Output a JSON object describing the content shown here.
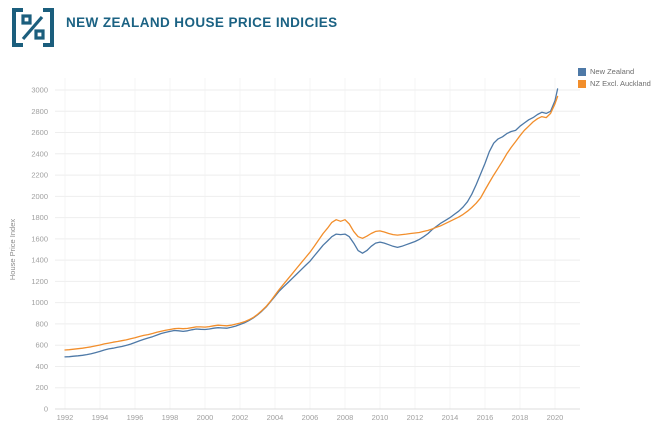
{
  "header": {
    "title": "NEW ZEALAND HOUSE PRICE INDICIES",
    "accent_color": "#1b6283",
    "icon": "percent-frame-icon"
  },
  "chart_data": {
    "type": "line",
    "title": "NEW ZEALAND HOUSE PRICE INDICIES",
    "xlabel": "",
    "ylabel": "House Price Index",
    "xlim": [
      1991.43,
      2021.43
    ],
    "ylim": [
      0,
      3000
    ],
    "x_ticks": [
      1992,
      1994,
      1996,
      1998,
      2000,
      2002,
      2004,
      2006,
      2008,
      2010,
      2012,
      2014,
      2016,
      2018,
      2020
    ],
    "y_ticks": [
      0,
      200,
      400,
      600,
      800,
      1000,
      1200,
      1400,
      1600,
      1800,
      2000,
      2200,
      2400,
      2600,
      2800,
      3000
    ],
    "grid": true,
    "legend_position": "top-right",
    "x": [
      1992,
      1992.25,
      1992.5,
      1992.75,
      1993,
      1993.25,
      1993.5,
      1993.75,
      1994,
      1994.25,
      1994.5,
      1994.75,
      1995,
      1995.25,
      1995.5,
      1995.75,
      1996,
      1996.25,
      1996.5,
      1996.75,
      1997,
      1997.25,
      1997.5,
      1997.75,
      1998,
      1998.25,
      1998.5,
      1998.75,
      1999,
      1999.25,
      1999.5,
      1999.75,
      2000,
      2000.25,
      2000.5,
      2000.75,
      2001,
      2001.25,
      2001.5,
      2001.75,
      2002,
      2002.25,
      2002.5,
      2002.75,
      2003,
      2003.25,
      2003.5,
      2003.75,
      2004,
      2004.25,
      2004.5,
      2004.75,
      2005,
      2005.25,
      2005.5,
      2005.75,
      2006,
      2006.25,
      2006.5,
      2006.75,
      2007,
      2007.25,
      2007.5,
      2007.75,
      2008,
      2008.25,
      2008.5,
      2008.75,
      2009,
      2009.25,
      2009.5,
      2009.75,
      2010,
      2010.25,
      2010.5,
      2010.75,
      2011,
      2011.25,
      2011.5,
      2011.75,
      2012,
      2012.25,
      2012.5,
      2012.75,
      2013,
      2013.25,
      2013.5,
      2013.75,
      2014,
      2014.25,
      2014.5,
      2014.75,
      2015,
      2015.25,
      2015.5,
      2015.75,
      2016,
      2016.25,
      2016.5,
      2016.75,
      2017,
      2017.25,
      2017.5,
      2017.75,
      2018,
      2018.25,
      2018.5,
      2018.75,
      2019,
      2019.25,
      2019.5,
      2019.75,
      2020,
      2020.15
    ],
    "series": [
      {
        "name": "New Zealand",
        "color": "#4e79a7",
        "values": [
          490,
          492,
          497,
          500,
          505,
          512,
          520,
          530,
          542,
          555,
          565,
          572,
          580,
          588,
          598,
          610,
          625,
          640,
          655,
          668,
          680,
          695,
          710,
          720,
          730,
          738,
          735,
          730,
          735,
          745,
          752,
          750,
          748,
          752,
          760,
          765,
          762,
          760,
          768,
          780,
          795,
          810,
          830,
          855,
          885,
          920,
          960,
          1010,
          1060,
          1110,
          1150,
          1190,
          1230,
          1270,
          1310,
          1350,
          1390,
          1440,
          1490,
          1540,
          1580,
          1620,
          1645,
          1640,
          1645,
          1620,
          1560,
          1490,
          1465,
          1490,
          1530,
          1560,
          1570,
          1560,
          1545,
          1530,
          1520,
          1530,
          1545,
          1560,
          1575,
          1595,
          1620,
          1650,
          1690,
          1720,
          1750,
          1775,
          1800,
          1830,
          1860,
          1900,
          1950,
          2020,
          2110,
          2210,
          2310,
          2420,
          2500,
          2540,
          2560,
          2590,
          2610,
          2620,
          2660,
          2690,
          2720,
          2740,
          2770,
          2790,
          2780,
          2800,
          2900,
          3010
        ]
      },
      {
        "name": "NZ Excl. Auckland",
        "color": "#f28e2b",
        "values": [
          555,
          558,
          562,
          567,
          572,
          578,
          585,
          593,
          602,
          612,
          620,
          628,
          635,
          642,
          650,
          660,
          670,
          682,
          692,
          700,
          710,
          722,
          732,
          740,
          748,
          755,
          758,
          755,
          758,
          765,
          772,
          772,
          770,
          775,
          782,
          788,
          785,
          782,
          788,
          798,
          808,
          820,
          838,
          860,
          890,
          925,
          965,
          1015,
          1070,
          1125,
          1175,
          1225,
          1275,
          1325,
          1375,
          1425,
          1475,
          1530,
          1590,
          1650,
          1700,
          1755,
          1780,
          1765,
          1780,
          1740,
          1670,
          1620,
          1605,
          1625,
          1650,
          1670,
          1675,
          1665,
          1650,
          1640,
          1635,
          1640,
          1645,
          1650,
          1655,
          1660,
          1670,
          1680,
          1695,
          1710,
          1725,
          1745,
          1765,
          1785,
          1805,
          1830,
          1860,
          1895,
          1935,
          1985,
          2060,
          2130,
          2200,
          2265,
          2330,
          2400,
          2460,
          2515,
          2570,
          2620,
          2660,
          2700,
          2730,
          2750,
          2740,
          2780,
          2870,
          2940
        ]
      }
    ],
    "colors": {
      "grid_h": "#eeeeee",
      "grid_v": "#f6f6f6",
      "axis_zero_line": "#dcdcdc",
      "tick_label": "#a0a0a0",
      "axis_title": "#8c8c8c"
    }
  }
}
